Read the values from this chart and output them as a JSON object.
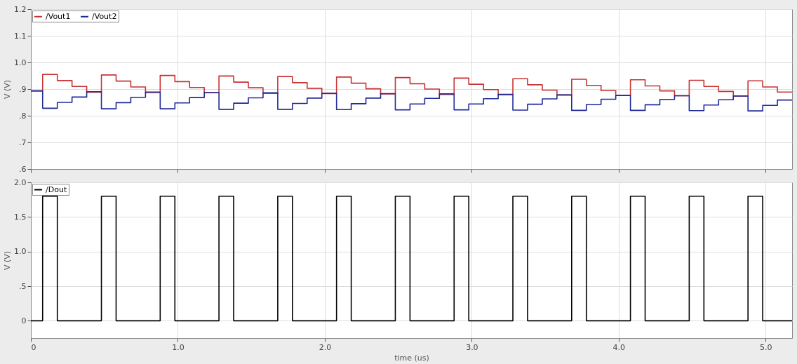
{
  "chart_data": [
    {
      "type": "step",
      "ylabel": "V (V)",
      "xlim": [
        0,
        5.18
      ],
      "xticks": [
        0,
        1,
        2,
        3,
        4,
        5
      ],
      "ylim": [
        0.6,
        1.2
      ],
      "yticks": [
        {
          "value": 0.6,
          "label": ".6"
        },
        {
          "value": 0.7,
          "label": ".7"
        },
        {
          "value": 0.8,
          "label": ".8"
        },
        {
          "value": 0.9,
          "label": ".9"
        },
        {
          "value": 1,
          "label": "1.0"
        },
        1.1,
        1.2
      ],
      "tick_labels": "y",
      "grid": true,
      "legend": "top left",
      "marker": "none",
      "line_style": "solid",
      "x": [
        0,
        0.08,
        0.18,
        0.28,
        0.38,
        0.48,
        0.58,
        0.68,
        0.78,
        0.88,
        0.98,
        1.08,
        1.18,
        1.28,
        1.38,
        1.48,
        1.58,
        1.68,
        1.78,
        1.88,
        1.98,
        2.08,
        2.18,
        2.28,
        2.38,
        2.48,
        2.58,
        2.68,
        2.78,
        2.88,
        2.98,
        3.08,
        3.18,
        3.28,
        3.38,
        3.48,
        3.58,
        3.68,
        3.78,
        3.88,
        3.98,
        4.08,
        4.18,
        4.28,
        4.38,
        4.48,
        4.58,
        4.68,
        4.78,
        4.88,
        4.98,
        5.08,
        5.18
      ],
      "series": [
        {
          "name": "/Vout1",
          "color": "#c83232",
          "values": [
            0.893,
            0.955,
            0.932,
            0.91,
            0.888,
            0.953,
            0.93,
            0.908,
            0.887,
            0.951,
            0.928,
            0.906,
            0.886,
            0.949,
            0.926,
            0.905,
            0.884,
            0.947,
            0.924,
            0.903,
            0.883,
            0.945,
            0.922,
            0.901,
            0.882,
            0.943,
            0.92,
            0.9,
            0.88,
            0.941,
            0.918,
            0.898,
            0.879,
            0.939,
            0.916,
            0.896,
            0.878,
            0.937,
            0.914,
            0.894,
            0.876,
            0.935,
            0.912,
            0.893,
            0.875,
            0.933,
            0.91,
            0.891,
            0.874,
            0.931,
            0.908,
            0.889,
            0.889
          ]
        },
        {
          "name": "/Vout2",
          "color": "#1f2a99",
          "values": [
            0.893,
            0.828,
            0.85,
            0.87,
            0.89,
            0.826,
            0.849,
            0.869,
            0.889,
            0.826,
            0.848,
            0.868,
            0.887,
            0.824,
            0.847,
            0.867,
            0.886,
            0.824,
            0.846,
            0.866,
            0.884,
            0.823,
            0.845,
            0.866,
            0.883,
            0.822,
            0.844,
            0.865,
            0.882,
            0.822,
            0.844,
            0.864,
            0.88,
            0.821,
            0.843,
            0.863,
            0.878,
            0.82,
            0.842,
            0.862,
            0.876,
            0.82,
            0.841,
            0.861,
            0.875,
            0.819,
            0.84,
            0.86,
            0.874,
            0.818,
            0.839,
            0.859,
            0.859
          ]
        }
      ]
    },
    {
      "type": "step",
      "xlabel": "time (us)",
      "ylabel": "V (V)",
      "xlim": [
        0,
        5.18
      ],
      "xticks": [
        {
          "value": 0,
          "label": "0"
        },
        {
          "value": 1,
          "label": "1.0"
        },
        {
          "value": 2,
          "label": "2.0"
        },
        {
          "value": 3,
          "label": "3.0"
        },
        {
          "value": 4,
          "label": "4.0"
        },
        {
          "value": 5,
          "label": "5.0"
        }
      ],
      "ylim": [
        -0.25,
        2
      ],
      "yticks": [
        0,
        {
          "value": 0.5,
          "label": ".5"
        },
        {
          "value": 1,
          "label": "1.0"
        },
        1.5,
        {
          "value": 2,
          "label": "2.0"
        }
      ],
      "grid": true,
      "legend": "top left",
      "marker": "none",
      "line_style": "solid",
      "x": [
        0,
        0.08,
        0.18,
        0.48,
        0.58,
        0.88,
        0.98,
        1.28,
        1.38,
        1.68,
        1.78,
        2.08,
        2.18,
        2.48,
        2.58,
        2.88,
        2.98,
        3.28,
        3.38,
        3.68,
        3.78,
        4.08,
        4.18,
        4.48,
        4.58,
        4.88,
        4.98,
        5.18
      ],
      "series": [
        {
          "name": "/Dout",
          "color": "#000000",
          "values": [
            0,
            1.8,
            0,
            1.8,
            0,
            1.8,
            0,
            1.8,
            0,
            1.8,
            0,
            1.8,
            0,
            1.8,
            0,
            1.8,
            0,
            1.8,
            0,
            1.8,
            0,
            1.8,
            0,
            1.8,
            0,
            1.8,
            0,
            0
          ]
        }
      ]
    }
  ]
}
